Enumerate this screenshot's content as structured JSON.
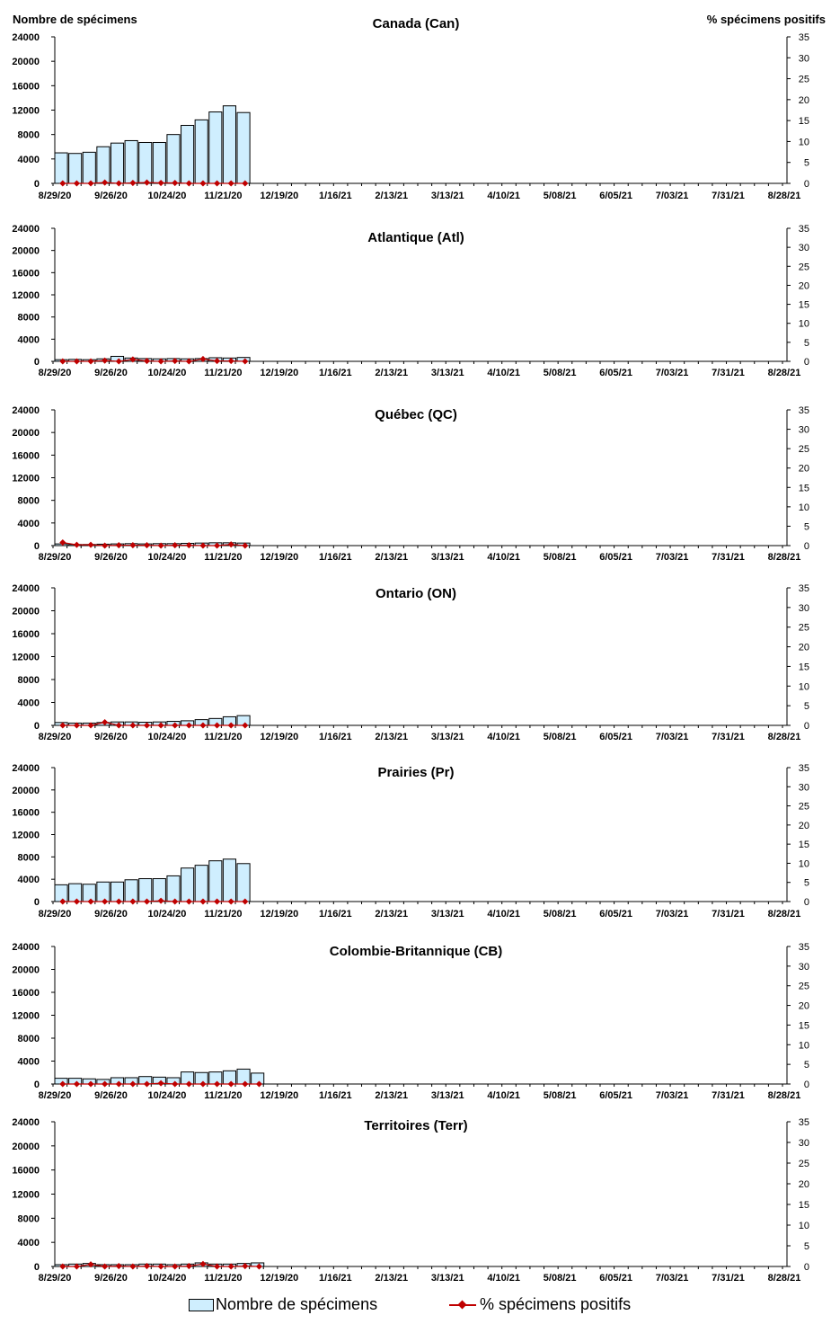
{
  "y_left_title": "Nombre de spécimens",
  "y_right_title": "% spécimens positifs",
  "legend": {
    "bars_label": "Nombre de spécimens",
    "line_label": "% spécimens positifs"
  },
  "colors": {
    "bar_fill": "#cfeefe",
    "bar_stroke": "#000000",
    "line": "#c00000"
  },
  "chart_data": [
    {
      "type": "bar+line",
      "title": "Canada (Can)",
      "xticks": [
        "8/29/20",
        "9/26/20",
        "10/24/20",
        "11/21/20",
        "12/19/20",
        "1/16/21",
        "2/13/21",
        "3/13/21",
        "4/10/21",
        "5/08/21",
        "6/05/21",
        "7/03/21",
        "7/31/21",
        "8/28/21"
      ],
      "ylim_left": [
        0,
        24000
      ],
      "yticks_left": [
        0,
        4000,
        8000,
        12000,
        16000,
        20000,
        24000
      ],
      "ylim_right": [
        0,
        35
      ],
      "yticks_right": [
        0,
        5,
        10,
        15,
        20,
        25,
        30,
        35
      ],
      "weeks": 53,
      "bars": [
        5000,
        4900,
        5100,
        6000,
        6600,
        7000,
        6700,
        6700,
        8000,
        9500,
        10400,
        11700,
        12700,
        11600
      ],
      "pct": [
        0,
        0,
        0,
        0.2,
        0,
        0.1,
        0.2,
        0.1,
        0.1,
        0,
        0,
        0,
        0,
        0
      ]
    },
    {
      "type": "bar+line",
      "title": "Atlantique (Atl)",
      "xticks": [
        "8/29/20",
        "9/26/20",
        "10/24/20",
        "11/21/20",
        "12/19/20",
        "1/16/21",
        "2/13/21",
        "3/13/21",
        "4/10/21",
        "5/08/21",
        "6/05/21",
        "7/03/21",
        "7/31/21",
        "8/28/21"
      ],
      "ylim_left": [
        0,
        24000
      ],
      "yticks_left": [
        0,
        4000,
        8000,
        12000,
        16000,
        20000,
        24000
      ],
      "ylim_right": [
        0,
        35
      ],
      "yticks_right": [
        0,
        5,
        10,
        15,
        20,
        25,
        30,
        35
      ],
      "weeks": 53,
      "bars": [
        300,
        350,
        300,
        450,
        900,
        600,
        500,
        450,
        500,
        450,
        500,
        650,
        600,
        700
      ],
      "pct": [
        0,
        0,
        0,
        0.2,
        0,
        0.5,
        0.1,
        0,
        0.1,
        0,
        0.6,
        0.1,
        0.1,
        0
      ]
    },
    {
      "type": "bar+line",
      "title": "Québec (QC)",
      "xticks": [
        "8/29/20",
        "9/26/20",
        "10/24/20",
        "11/21/20",
        "12/19/20",
        "1/16/21",
        "2/13/21",
        "3/13/21",
        "4/10/21",
        "5/08/21",
        "6/05/21",
        "7/03/21",
        "7/31/21",
        "8/28/21"
      ],
      "ylim_left": [
        0,
        24000
      ],
      "yticks_left": [
        0,
        4000,
        8000,
        12000,
        16000,
        20000,
        24000
      ],
      "ylim_right": [
        0,
        35
      ],
      "yticks_right": [
        0,
        5,
        10,
        15,
        20,
        25,
        30,
        35
      ],
      "weeks": 53,
      "bars": [
        300,
        200,
        200,
        250,
        300,
        350,
        300,
        350,
        350,
        400,
        450,
        500,
        500,
        450
      ],
      "pct": [
        0.8,
        0.2,
        0.2,
        0,
        0.1,
        0.1,
        0.1,
        0,
        0.1,
        0.1,
        0,
        0,
        0.3,
        0
      ]
    },
    {
      "type": "bar+line",
      "title": "Ontario (ON)",
      "xticks": [
        "8/29/20",
        "9/26/20",
        "10/24/20",
        "11/21/20",
        "12/19/20",
        "1/16/21",
        "2/13/21",
        "3/13/21",
        "4/10/21",
        "5/08/21",
        "6/05/21",
        "7/03/21",
        "7/31/21",
        "8/28/21"
      ],
      "ylim_left": [
        0,
        24000
      ],
      "yticks_left": [
        0,
        4000,
        8000,
        12000,
        16000,
        20000,
        24000
      ],
      "ylim_right": [
        0,
        35
      ],
      "yticks_right": [
        0,
        5,
        10,
        15,
        20,
        25,
        30,
        35
      ],
      "weeks": 53,
      "bars": [
        500,
        400,
        400,
        500,
        600,
        600,
        550,
        600,
        700,
        800,
        1000,
        1200,
        1500,
        1700
      ],
      "pct": [
        0,
        0,
        0,
        0.8,
        0,
        0,
        0,
        0,
        0,
        0,
        0,
        0,
        0,
        0
      ]
    },
    {
      "type": "bar+line",
      "title": "Prairies (Pr)",
      "xticks": [
        "8/29/20",
        "9/26/20",
        "10/24/20",
        "11/21/20",
        "12/19/20",
        "1/16/21",
        "2/13/21",
        "3/13/21",
        "4/10/21",
        "5/08/21",
        "6/05/21",
        "7/03/21",
        "7/31/21",
        "8/28/21"
      ],
      "ylim_left": [
        0,
        24000
      ],
      "yticks_left": [
        0,
        4000,
        8000,
        12000,
        16000,
        20000,
        24000
      ],
      "ylim_right": [
        0,
        35
      ],
      "yticks_right": [
        0,
        5,
        10,
        15,
        20,
        25,
        30,
        35
      ],
      "weeks": 53,
      "bars": [
        3000,
        3200,
        3100,
        3500,
        3500,
        3900,
        4100,
        4100,
        4600,
        6000,
        6500,
        7300,
        7600,
        6800
      ],
      "pct": [
        0,
        0,
        0,
        0,
        0,
        0,
        0,
        0.2,
        0,
        0,
        0,
        0,
        0,
        0
      ]
    },
    {
      "type": "bar+line",
      "title": "Colombie-Britannique (CB)",
      "xticks": [
        "8/29/20",
        "9/26/20",
        "10/24/20",
        "11/21/20",
        "12/19/20",
        "1/16/21",
        "2/13/21",
        "3/13/21",
        "4/10/21",
        "5/08/21",
        "6/05/21",
        "7/03/21",
        "7/31/21",
        "8/28/21"
      ],
      "ylim_left": [
        0,
        24000
      ],
      "yticks_left": [
        0,
        4000,
        8000,
        12000,
        16000,
        20000,
        24000
      ],
      "ylim_right": [
        0,
        35
      ],
      "yticks_right": [
        0,
        5,
        10,
        15,
        20,
        25,
        30,
        35
      ],
      "weeks": 53,
      "bars": [
        1000,
        1000,
        900,
        800,
        1100,
        1100,
        1300,
        1200,
        1100,
        2100,
        2000,
        2100,
        2300,
        2600,
        1900
      ],
      "pct": [
        0,
        0,
        0,
        0,
        0,
        0,
        0,
        0.2,
        0,
        0,
        0,
        0,
        0,
        0,
        0
      ]
    },
    {
      "type": "bar+line",
      "title": "Territoires (Terr)",
      "xticks": [
        "8/29/20",
        "9/26/20",
        "10/24/20",
        "11/21/20",
        "12/19/20",
        "1/16/21",
        "2/13/21",
        "3/13/21",
        "4/10/21",
        "5/08/21",
        "6/05/21",
        "7/03/21",
        "7/31/21",
        "8/28/21"
      ],
      "ylim_left": [
        0,
        24000
      ],
      "yticks_left": [
        0,
        4000,
        8000,
        12000,
        16000,
        20000,
        24000
      ],
      "ylim_right": [
        0,
        35
      ],
      "yticks_right": [
        0,
        5,
        10,
        15,
        20,
        25,
        30,
        35
      ],
      "weeks": 53,
      "bars": [
        300,
        400,
        500,
        300,
        300,
        300,
        400,
        400,
        300,
        400,
        600,
        400,
        400,
        500,
        600
      ],
      "pct": [
        0,
        0,
        0.5,
        0,
        0.1,
        0,
        0.1,
        0,
        0,
        0.1,
        0.6,
        0,
        0,
        0.1,
        0
      ]
    }
  ]
}
